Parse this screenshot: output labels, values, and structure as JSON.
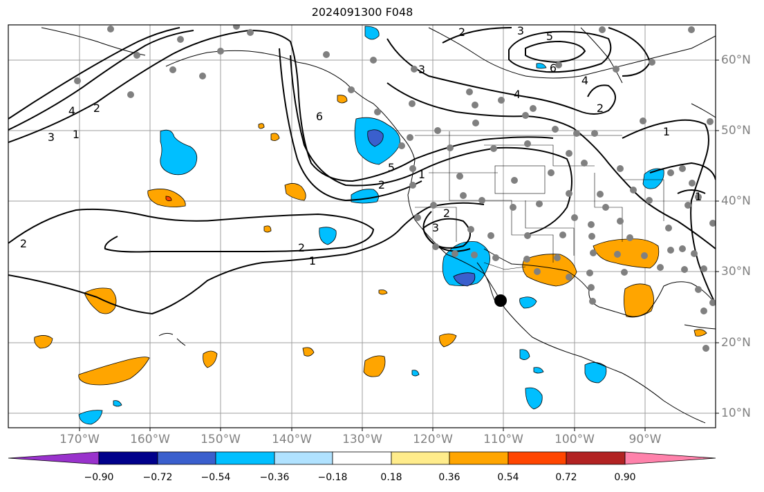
{
  "title": "2024091300 F048",
  "map": {
    "projection": "lat-lon",
    "lon_range": [
      -180,
      -80
    ],
    "lat_range": [
      8,
      65
    ],
    "gridlines": true,
    "contour_color": "#000000",
    "land_outline_color": "#000000"
  },
  "lon_labels": [
    "170°W",
    "160°W",
    "150°W",
    "140°W",
    "130°W",
    "120°W",
    "110°W",
    "100°W",
    "90°W"
  ],
  "lat_labels": [
    "60°N",
    "50°N",
    "40°N",
    "30°N",
    "20°N",
    "10°N"
  ],
  "contour_labels": [
    "1",
    "2",
    "3",
    "4",
    "5",
    "6"
  ],
  "colorbar": {
    "colors": [
      "#9932cc",
      "#00008b",
      "#3a5fcd",
      "#00bfff",
      "#b0e2ff",
      "#ffffff",
      "#ffec8b",
      "#ffa500",
      "#ff4500",
      "#b22222",
      "#ff82ab"
    ],
    "tick_labels": [
      "−0.90",
      "−0.72",
      "−0.54",
      "−0.36",
      "−0.18",
      "0.18",
      "0.36",
      "0.54",
      "0.72",
      "0.90"
    ],
    "extend": "both"
  },
  "marker": {
    "label": "storm center",
    "color": "#000000"
  },
  "station_color": "#808080"
}
